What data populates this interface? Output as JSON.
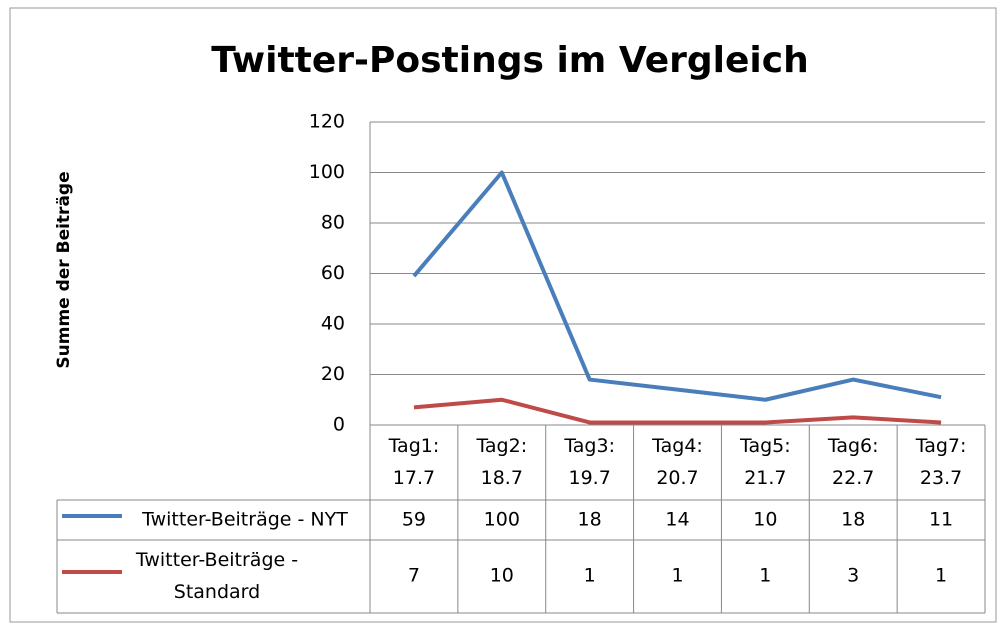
{
  "chart_data": {
    "type": "line",
    "title": "Twitter-Postings im Vergleich",
    "y_label": "Summe der Beiträge",
    "categories": [
      "Tag1: 17.7",
      "Tag2: 18.7",
      "Tag3: 19.7",
      "Tag4: 20.7",
      "Tag5: 21.7",
      "Tag6: 22.7",
      "Tag7: 23.7"
    ],
    "series": [
      {
        "name": "Twitter-Beiträge - NYT",
        "color": "#4a7ebb",
        "values": [
          59,
          100,
          18,
          14,
          10,
          18,
          11
        ]
      },
      {
        "name": "Twitter-Beiträge - Standard",
        "color": "#be4b48",
        "values": [
          7,
          10,
          1,
          1,
          1,
          3,
          1
        ]
      }
    ],
    "ylim": [
      0,
      120
    ],
    "yticks": [
      0,
      20,
      40,
      60,
      80,
      100,
      120
    ],
    "grid": true,
    "data_table": true
  }
}
